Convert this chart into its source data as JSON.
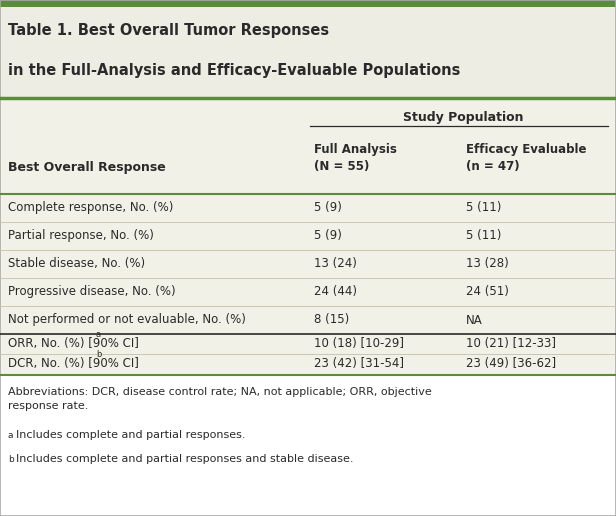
{
  "title_line1": "Table 1. Best Overall Tumor Responses",
  "title_line2": "in the Full-Analysis and Efficacy-Evaluable Populations",
  "top_bar_color": "#6aaa5a",
  "title_bg_color": "#eeede4",
  "table_bg_color": "#f2f1e8",
  "footnote_bg_color": "#ffffff",
  "header_group": "Study Population",
  "col1_header": "Best Overall Response",
  "col2_header": "Full Analysis\n(N = 55)",
  "col3_header": "Efficacy Evaluable\n(n = 47)",
  "rows": [
    [
      "Complete response, No. (%)",
      "5 (9)",
      "5 (11)"
    ],
    [
      "Partial response, No. (%)",
      "5 (9)",
      "5 (11)"
    ],
    [
      "Stable disease, No. (%)",
      "13 (24)",
      "13 (28)"
    ],
    [
      "Progressive disease, No. (%)",
      "24 (44)",
      "24 (51)"
    ],
    [
      "Not performed or not evaluable, No. (%)",
      "8 (15)",
      "NA"
    ],
    [
      "ORR, No. (%) [90% CI]",
      "10 (18) [10-29]",
      "10 (21) [12-33]"
    ],
    [
      "DCR, No. (%) [90% CI]",
      "23 (42) [31-54]",
      "23 (49) [36-62]"
    ]
  ],
  "row_superscripts": [
    "",
    "",
    "",
    "",
    "",
    "a",
    "b"
  ],
  "footnote1": "Abbreviations: DCR, disease control rate; NA, not applicable; ORR, objective\nresponse rate.",
  "footnote2": "Includes complete and partial responses.",
  "footnote3": "Includes complete and partial responses and stable disease.",
  "dark_green": "#5a8c3c",
  "line_color_dark": "#4a7a30",
  "line_color_mid": "#8aaa6a",
  "line_color_light": "#c8c8b0",
  "text_color": "#2a2a2a",
  "ORR_row_index": 5
}
